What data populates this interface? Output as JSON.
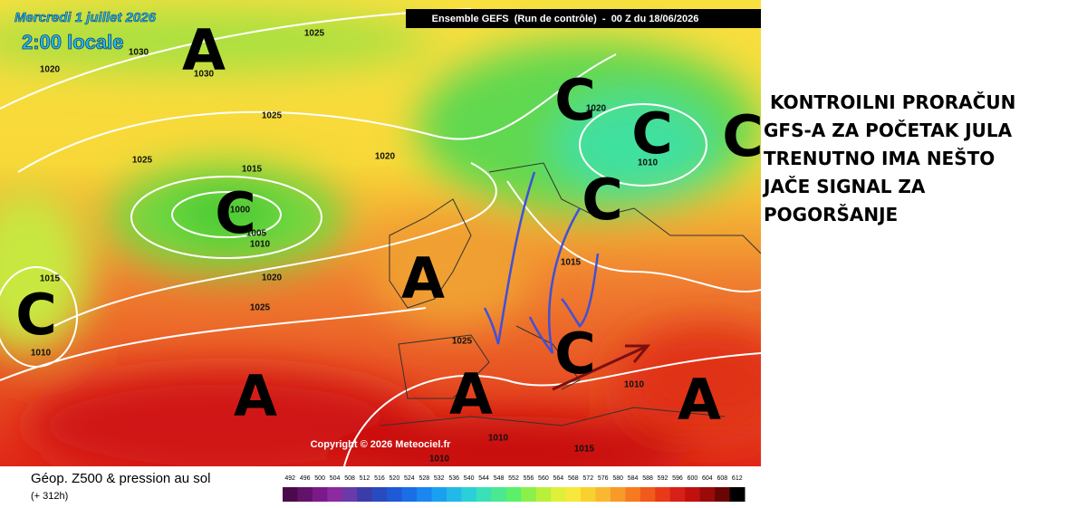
{
  "header": {
    "date": "Mercredi 1 juillet 2026",
    "time": "2:00 locale",
    "run": "Ensemble GEFS  (Run de contrôle)  -  00 Z du 18/06/2026"
  },
  "map": {
    "centers": [
      "A",
      "C",
      "C",
      "C",
      "C",
      "C",
      "A",
      "C",
      "C",
      "A",
      "A",
      "A"
    ],
    "isobar_labels": [
      "1025",
      "1030",
      "1020",
      "1030",
      "1025",
      "1025",
      "1015",
      "1020",
      "1000",
      "1005",
      "1010",
      "1020",
      "1015",
      "1025",
      "1010",
      "1010",
      "1015",
      "1025",
      "1010",
      "1010",
      "1015",
      "1010",
      "1020"
    ],
    "copyright": "Copyright © 2026 Meteociel.fr"
  },
  "legend": {
    "title": "Géop. Z500 & pression au sol",
    "lead": "(+ 312h)",
    "ticks": [
      492,
      496,
      500,
      504,
      508,
      512,
      516,
      520,
      524,
      528,
      532,
      536,
      540,
      544,
      548,
      552,
      556,
      560,
      564,
      568,
      572,
      576,
      580,
      584,
      588,
      592,
      596,
      600,
      604,
      608,
      612
    ],
    "colors": [
      "#4b0a4b",
      "#62126a",
      "#7a1a8a",
      "#8e2aa0",
      "#6a3aa8",
      "#3c3ca8",
      "#2a4ac0",
      "#1e5ad6",
      "#1a6ee8",
      "#1a86f0",
      "#1aa0f0",
      "#22b8e8",
      "#2ad0d8",
      "#3ae0b8",
      "#4ae890",
      "#5af06a",
      "#8af04a",
      "#b8f03a",
      "#e0f03a",
      "#f8e83a",
      "#f8d030",
      "#f8b830",
      "#f89a28",
      "#f87a20",
      "#f05a1a",
      "#e83a18",
      "#d82018",
      "#c01010",
      "#9a0a0a",
      "#6a0505",
      "#000000"
    ]
  },
  "annotation": {
    "lines": [
      "KONTROILNI PRORAČUN",
      "GFS-A ZA POČETAK JULA",
      "TRENUTNO IMA NEŠTO",
      "JAČE SIGNAL ZA",
      "POGORŠANJE"
    ]
  }
}
